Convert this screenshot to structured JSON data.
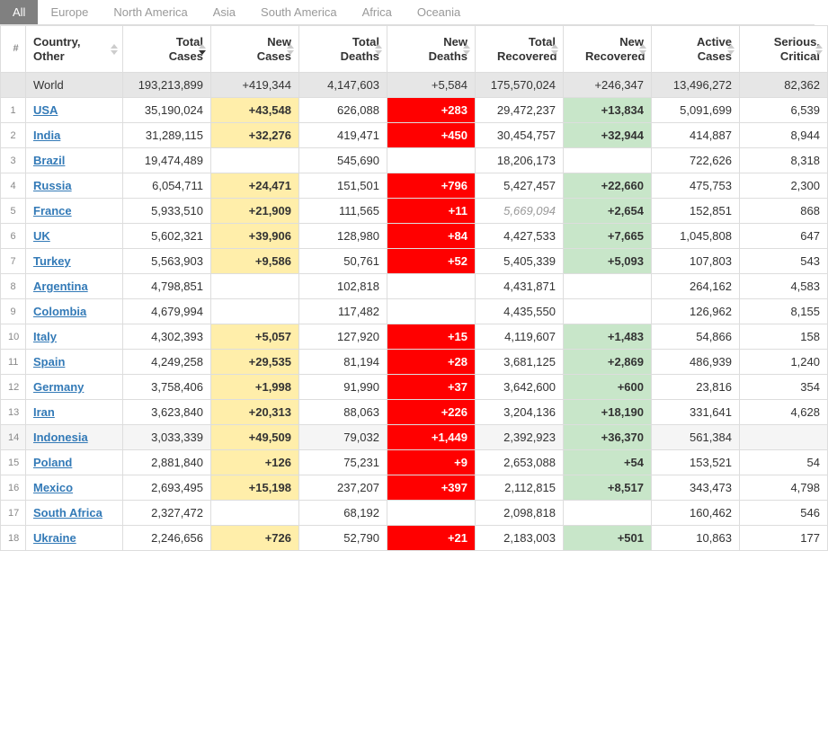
{
  "tabs": {
    "active": "All",
    "items": [
      "All",
      "Europe",
      "North America",
      "Asia",
      "South America",
      "Africa",
      "Oceania"
    ]
  },
  "columns": [
    {
      "key": "num",
      "label": "#",
      "class": "col-num",
      "sortable": false
    },
    {
      "key": "country",
      "label": "Country, Other",
      "class": "col-country",
      "sortable": true,
      "sortState": "both"
    },
    {
      "key": "totalCases",
      "label": "Total Cases",
      "class": "col-std",
      "sortable": true,
      "sortState": "desc"
    },
    {
      "key": "newCases",
      "label": "New Cases",
      "class": "col-std",
      "sortable": true,
      "sortState": "both"
    },
    {
      "key": "totalDeaths",
      "label": "Total Deaths",
      "class": "col-std",
      "sortable": true,
      "sortState": "both"
    },
    {
      "key": "newDeaths",
      "label": "New Deaths",
      "class": "col-std",
      "sortable": true,
      "sortState": "both"
    },
    {
      "key": "totalRecovered",
      "label": "Total Recovered",
      "class": "col-std",
      "sortable": true,
      "sortState": "both"
    },
    {
      "key": "newRecovered",
      "label": "New Recovered",
      "class": "col-std",
      "sortable": true,
      "sortState": "both"
    },
    {
      "key": "activeCases",
      "label": "Active Cases",
      "class": "col-std",
      "sortable": true,
      "sortState": "both"
    },
    {
      "key": "seriousCritical",
      "label": "Serious, Critical",
      "class": "col-std",
      "sortable": true,
      "sortState": "both"
    }
  ],
  "worldRow": {
    "country": "World",
    "totalCases": "193,213,899",
    "newCases": "+419,344",
    "totalDeaths": "4,147,603",
    "newDeaths": "+5,584",
    "totalRecovered": "175,570,024",
    "newRecovered": "+246,347",
    "activeCases": "13,496,272",
    "seriousCritical": "82,362"
  },
  "rows": [
    {
      "num": "1",
      "country": "USA",
      "totalCases": "35,190,024",
      "newCases": "+43,548",
      "totalDeaths": "626,088",
      "newDeaths": "+283",
      "totalRecovered": "29,472,237",
      "newRecovered": "+13,834",
      "activeCases": "5,091,699",
      "seriousCritical": "6,539"
    },
    {
      "num": "2",
      "country": "India",
      "totalCases": "31,289,115",
      "newCases": "+32,276",
      "totalDeaths": "419,471",
      "newDeaths": "+450",
      "totalRecovered": "30,454,757",
      "newRecovered": "+32,944",
      "activeCases": "414,887",
      "seriousCritical": "8,944"
    },
    {
      "num": "3",
      "country": "Brazil",
      "totalCases": "19,474,489",
      "newCases": "",
      "totalDeaths": "545,690",
      "newDeaths": "",
      "totalRecovered": "18,206,173",
      "newRecovered": "",
      "activeCases": "722,626",
      "seriousCritical": "8,318"
    },
    {
      "num": "4",
      "country": "Russia",
      "totalCases": "6,054,711",
      "newCases": "+24,471",
      "totalDeaths": "151,501",
      "newDeaths": "+796",
      "totalRecovered": "5,427,457",
      "newRecovered": "+22,660",
      "activeCases": "475,753",
      "seriousCritical": "2,300"
    },
    {
      "num": "5",
      "country": "France",
      "totalCases": "5,933,510",
      "newCases": "+21,909",
      "totalDeaths": "111,565",
      "newDeaths": "+11",
      "totalRecovered": "5,669,094",
      "totalRecoveredStyle": "italic-grey",
      "newRecovered": "+2,654",
      "activeCases": "152,851",
      "seriousCritical": "868"
    },
    {
      "num": "6",
      "country": "UK",
      "totalCases": "5,602,321",
      "newCases": "+39,906",
      "totalDeaths": "128,980",
      "newDeaths": "+84",
      "totalRecovered": "4,427,533",
      "newRecovered": "+7,665",
      "activeCases": "1,045,808",
      "seriousCritical": "647"
    },
    {
      "num": "7",
      "country": "Turkey",
      "totalCases": "5,563,903",
      "newCases": "+9,586",
      "totalDeaths": "50,761",
      "newDeaths": "+52",
      "totalRecovered": "5,405,339",
      "newRecovered": "+5,093",
      "activeCases": "107,803",
      "seriousCritical": "543"
    },
    {
      "num": "8",
      "country": "Argentina",
      "totalCases": "4,798,851",
      "newCases": "",
      "totalDeaths": "102,818",
      "newDeaths": "",
      "totalRecovered": "4,431,871",
      "newRecovered": "",
      "activeCases": "264,162",
      "seriousCritical": "4,583"
    },
    {
      "num": "9",
      "country": "Colombia",
      "totalCases": "4,679,994",
      "newCases": "",
      "totalDeaths": "117,482",
      "newDeaths": "",
      "totalRecovered": "4,435,550",
      "newRecovered": "",
      "activeCases": "126,962",
      "seriousCritical": "8,155"
    },
    {
      "num": "10",
      "country": "Italy",
      "totalCases": "4,302,393",
      "newCases": "+5,057",
      "totalDeaths": "127,920",
      "newDeaths": "+15",
      "totalRecovered": "4,119,607",
      "newRecovered": "+1,483",
      "activeCases": "54,866",
      "seriousCritical": "158"
    },
    {
      "num": "11",
      "country": "Spain",
      "totalCases": "4,249,258",
      "newCases": "+29,535",
      "totalDeaths": "81,194",
      "newDeaths": "+28",
      "totalRecovered": "3,681,125",
      "newRecovered": "+2,869",
      "activeCases": "486,939",
      "seriousCritical": "1,240"
    },
    {
      "num": "12",
      "country": "Germany",
      "totalCases": "3,758,406",
      "newCases": "+1,998",
      "totalDeaths": "91,990",
      "newDeaths": "+37",
      "totalRecovered": "3,642,600",
      "newRecovered": "+600",
      "activeCases": "23,816",
      "seriousCritical": "354"
    },
    {
      "num": "13",
      "country": "Iran",
      "totalCases": "3,623,840",
      "newCases": "+20,313",
      "totalDeaths": "88,063",
      "newDeaths": "+226",
      "totalRecovered": "3,204,136",
      "newRecovered": "+18,190",
      "activeCases": "331,641",
      "seriousCritical": "4,628"
    },
    {
      "num": "14",
      "country": "Indonesia",
      "totalCases": "3,033,339",
      "newCases": "+49,509",
      "totalDeaths": "79,032",
      "newDeaths": "+1,449",
      "totalRecovered": "2,392,923",
      "newRecovered": "+36,370",
      "activeCases": "561,384",
      "seriousCritical": "",
      "shaded": true
    },
    {
      "num": "15",
      "country": "Poland",
      "totalCases": "2,881,840",
      "newCases": "+126",
      "totalDeaths": "75,231",
      "newDeaths": "+9",
      "totalRecovered": "2,653,088",
      "newRecovered": "+54",
      "activeCases": "153,521",
      "seriousCritical": "54"
    },
    {
      "num": "16",
      "country": "Mexico",
      "totalCases": "2,693,495",
      "newCases": "+15,198",
      "totalDeaths": "237,207",
      "newDeaths": "+397",
      "totalRecovered": "2,112,815",
      "newRecovered": "+8,517",
      "activeCases": "343,473",
      "seriousCritical": "4,798"
    },
    {
      "num": "17",
      "country": "South Africa",
      "totalCases": "2,327,472",
      "newCases": "",
      "totalDeaths": "68,192",
      "newDeaths": "",
      "totalRecovered": "2,098,818",
      "newRecovered": "",
      "activeCases": "160,462",
      "seriousCritical": "546"
    },
    {
      "num": "18",
      "country": "Ukraine",
      "totalCases": "2,246,656",
      "newCases": "+726",
      "totalDeaths": "52,790",
      "newDeaths": "+21",
      "totalRecovered": "2,183,003",
      "newRecovered": "+501",
      "activeCases": "10,863",
      "seriousCritical": "177"
    }
  ],
  "colors": {
    "tabActiveBg": "#808080",
    "tabActiveText": "#ffffff",
    "tabInactiveText": "#999999",
    "border": "#dddddd",
    "worldRowBg": "#e6e6e6",
    "hlYellow": "#ffeeaa",
    "hlRed": "#ff0000",
    "hlGreen": "#c8e6c9",
    "link": "#337ab7",
    "shadedRow": "#f5f5f5"
  }
}
